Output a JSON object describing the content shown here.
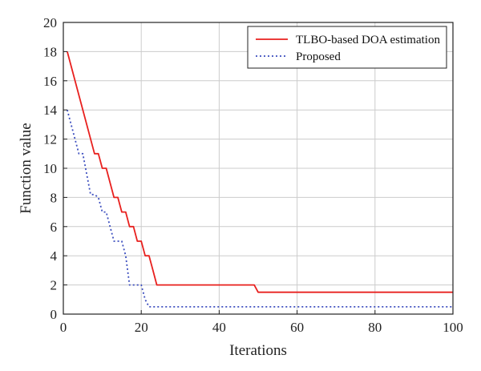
{
  "chart_data": {
    "type": "line",
    "title": "",
    "xlabel": "Iterations",
    "ylabel": "Function value",
    "xlim": [
      0,
      100
    ],
    "ylim": [
      0,
      20
    ],
    "xticks": [
      0,
      20,
      40,
      60,
      80,
      100
    ],
    "yticks": [
      0,
      2,
      4,
      6,
      8,
      10,
      12,
      14,
      16,
      18,
      20
    ],
    "grid": true,
    "legend_position": "top-right",
    "series": [
      {
        "name": "TLBO-based DOA estimation",
        "color": "#e8201e",
        "style": "solid",
        "x": [
          1,
          8,
          9,
          10,
          11,
          13,
          14,
          15,
          16,
          17,
          18,
          19,
          20,
          21,
          22,
          23,
          24,
          49,
          50,
          100
        ],
        "y": [
          18,
          11,
          11,
          10,
          10,
          8,
          8,
          7,
          7,
          6,
          6,
          5,
          5,
          4,
          4,
          3,
          2,
          2,
          1.5,
          1.5
        ]
      },
      {
        "name": "Proposed",
        "color": "#3d4fbf",
        "style": "dotted",
        "x": [
          1,
          4,
          5,
          7,
          8,
          9,
          10,
          11,
          12,
          13,
          14,
          15,
          16,
          17,
          18,
          19,
          20,
          21,
          22,
          23,
          24,
          100
        ],
        "y": [
          14,
          11,
          11,
          8.2,
          8.2,
          8,
          7,
          7,
          6,
          5,
          5,
          5,
          4,
          2,
          2,
          2,
          2,
          1,
          0.5,
          0.5,
          0.5,
          0.5
        ]
      }
    ]
  }
}
